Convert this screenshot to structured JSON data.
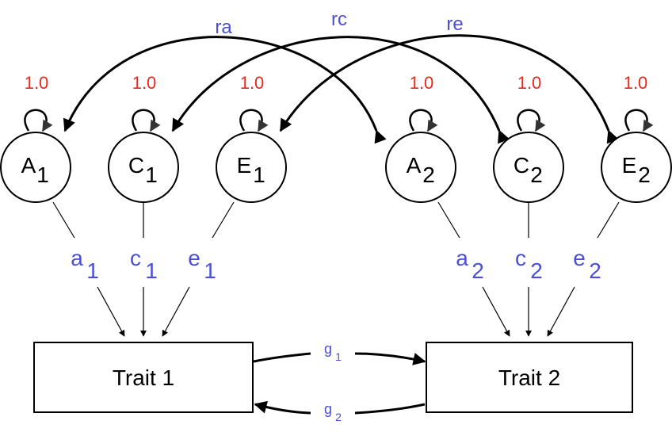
{
  "diagram": {
    "latent_nodes": [
      {
        "id": "A1",
        "letter": "A",
        "sub": "1",
        "variance": "1.0"
      },
      {
        "id": "C1",
        "letter": "C",
        "sub": "1",
        "variance": "1.0"
      },
      {
        "id": "E1",
        "letter": "E",
        "sub": "1",
        "variance": "1.0"
      },
      {
        "id": "A2",
        "letter": "A",
        "sub": "2",
        "variance": "1.0"
      },
      {
        "id": "C2",
        "letter": "C",
        "sub": "2",
        "variance": "1.0"
      },
      {
        "id": "E2",
        "letter": "E",
        "sub": "2",
        "variance": "1.0"
      }
    ],
    "path_labels": [
      {
        "letter": "a",
        "sub": "1"
      },
      {
        "letter": "c",
        "sub": "1"
      },
      {
        "letter": "e",
        "sub": "1"
      },
      {
        "letter": "a",
        "sub": "2"
      },
      {
        "letter": "c",
        "sub": "2"
      },
      {
        "letter": "e",
        "sub": "2"
      }
    ],
    "correlations": [
      {
        "label": "ra",
        "from": "A1",
        "to": "A2"
      },
      {
        "label": "rc",
        "from": "C2",
        "to": "C1"
      },
      {
        "label": "re",
        "from": "E2",
        "to": "E1"
      }
    ],
    "traits": [
      {
        "id": "T1",
        "label": "Trait 1"
      },
      {
        "id": "T2",
        "label": "Trait 2"
      }
    ],
    "cross_paths": [
      {
        "letter": "g",
        "sub": "1",
        "from": "T1",
        "to": "T2"
      },
      {
        "letter": "g",
        "sub": "2",
        "from": "T2",
        "to": "T1"
      }
    ],
    "colors": {
      "variance": "#e8281e",
      "path_label": "#4b4fd6",
      "stroke": "#000000"
    }
  }
}
